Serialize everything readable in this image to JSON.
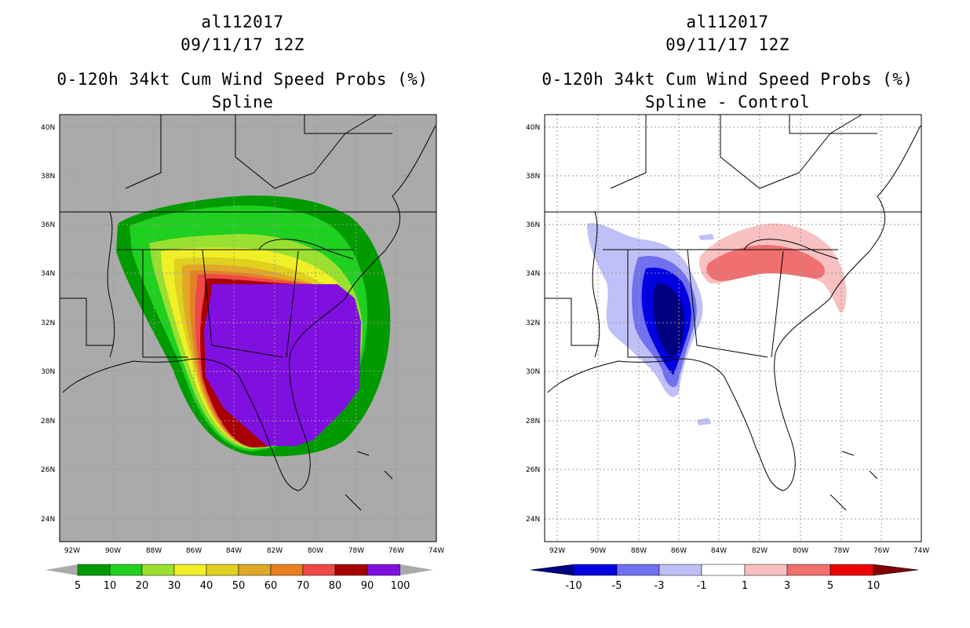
{
  "left": {
    "storm_id": "al112017",
    "datetime": "09/11/17 12Z",
    "product": "0-120h 34kt Cum Wind Speed Probs (%)",
    "subtitle": "Spline",
    "colorbar": {
      "labels": [
        "5",
        "10",
        "20",
        "30",
        "40",
        "50",
        "60",
        "70",
        "80",
        "90",
        "100"
      ],
      "colors": [
        "#019b00",
        "#20d020",
        "#9be030",
        "#f0f028",
        "#e0d020",
        "#e0a828",
        "#e88020",
        "#f04848",
        "#a80000",
        "#8010e0"
      ]
    }
  },
  "right": {
    "storm_id": "al112017",
    "datetime": "09/11/17 12Z",
    "product": "0-120h 34kt Cum Wind Speed Probs (%)",
    "subtitle": "Spline - Control",
    "colorbar": {
      "labels": [
        "-10",
        "-5",
        "-3",
        "-1",
        "1",
        "3",
        "5",
        "10"
      ],
      "colors": [
        "#000080",
        "#0000e0",
        "#7070f0",
        "#c0c0f8",
        "#ffffff",
        "#f8c0c0",
        "#f07070",
        "#f00000",
        "#800000"
      ]
    }
  },
  "axes": {
    "lat_labels": [
      "40N",
      "38N",
      "36N",
      "34N",
      "32N",
      "30N",
      "28N",
      "26N",
      "24N"
    ],
    "lon_labels": [
      "92W",
      "90W",
      "88W",
      "86W",
      "84W",
      "82W",
      "80W",
      "78W",
      "76W",
      "74W"
    ]
  },
  "colors": {
    "map_bg_left": "#aaaaaa",
    "map_bg_right": "#ffffff",
    "grid": "#999999"
  }
}
